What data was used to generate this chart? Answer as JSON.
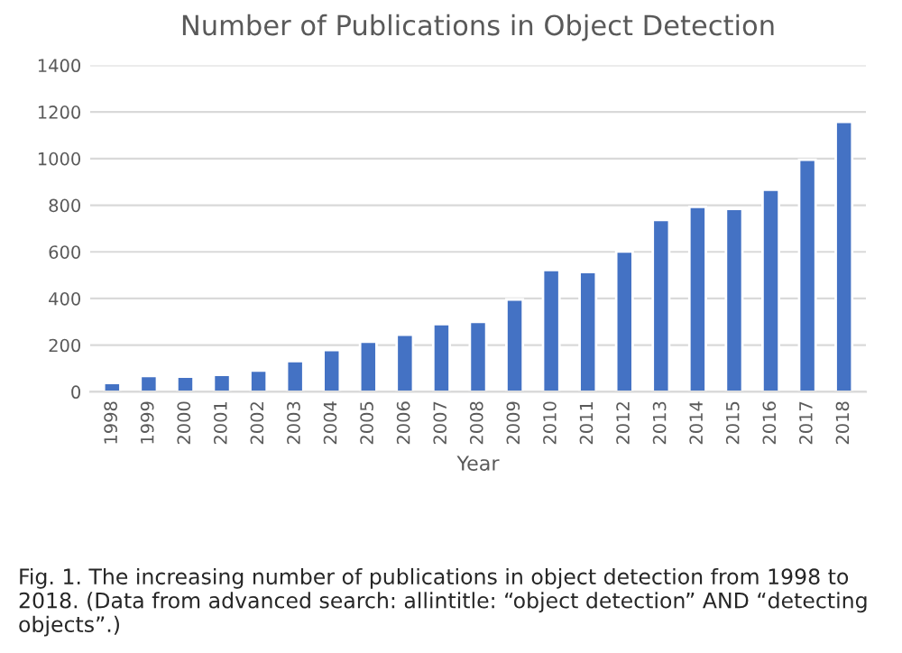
{
  "chart_data": {
    "type": "bar",
    "title": "Number of Publications in Object Detection",
    "xlabel": "Year",
    "categories": [
      "1998",
      "1999",
      "2000",
      "2001",
      "2002",
      "2003",
      "2004",
      "2005",
      "2006",
      "2007",
      "2008",
      "2009",
      "2010",
      "2011",
      "2012",
      "2013",
      "2014",
      "2015",
      "2016",
      "2017",
      "2018"
    ],
    "values": [
      38,
      68,
      65,
      73,
      91,
      132,
      179,
      215,
      245,
      290,
      300,
      396,
      522,
      514,
      602,
      737,
      793,
      784,
      866,
      995,
      1157
    ],
    "color": "#4472c4",
    "ylim": [
      0,
      1400
    ],
    "yticks": [
      0,
      200,
      400,
      600,
      800,
      1000,
      1200,
      1400
    ],
    "grid": "y",
    "annotations": [
      "Fig. 1. The increasing number of publications in object detection from 1998 to 2018. (Data from advanced search: allintitle: “object detection” AND “detecting objects”.)"
    ]
  }
}
